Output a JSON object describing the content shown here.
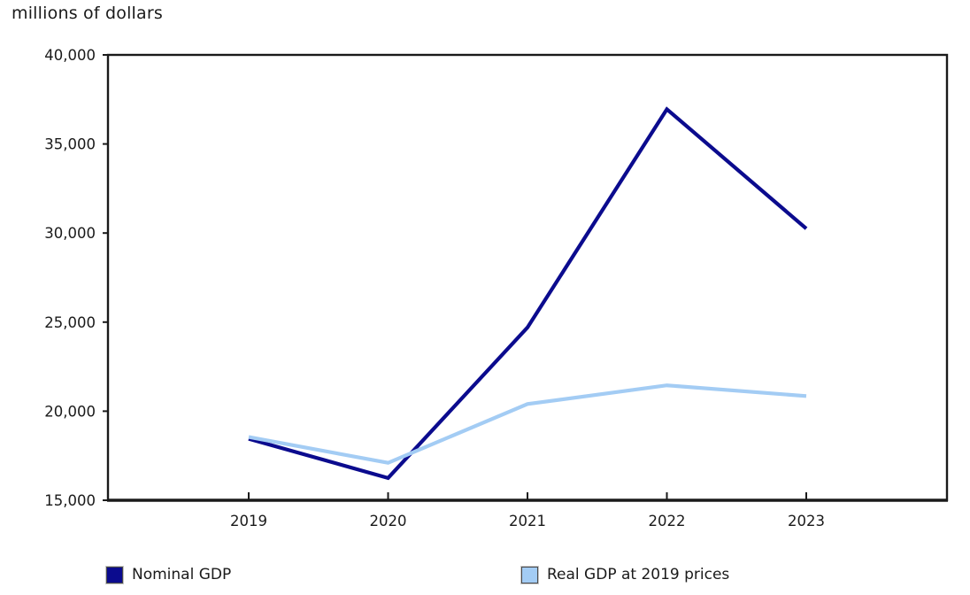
{
  "chart_data": {
    "type": "line",
    "title": "millions of dollars",
    "xlabel": "",
    "ylabel": "millions of dollars",
    "categories": [
      "2019",
      "2020",
      "2021",
      "2022",
      "2023"
    ],
    "series": [
      {
        "name": "Nominal GDP",
        "color": "#0b0b8e",
        "values": [
          18450,
          16250,
          24700,
          36950,
          30250
        ]
      },
      {
        "name": "Real GDP at 2019 prices",
        "color": "#a3ccf4",
        "values": [
          18550,
          17100,
          20400,
          21450,
          20850
        ]
      }
    ],
    "ylim": [
      15000,
      40000
    ],
    "y_ticks": [
      15000,
      20000,
      25000,
      30000,
      35000,
      40000
    ],
    "y_tick_labels": [
      "15,000",
      "20,000",
      "25,000",
      "30,000",
      "35,000",
      "40,000"
    ],
    "grid": false,
    "legend_position": "bottom",
    "axis_color": "#1a1a1a"
  }
}
